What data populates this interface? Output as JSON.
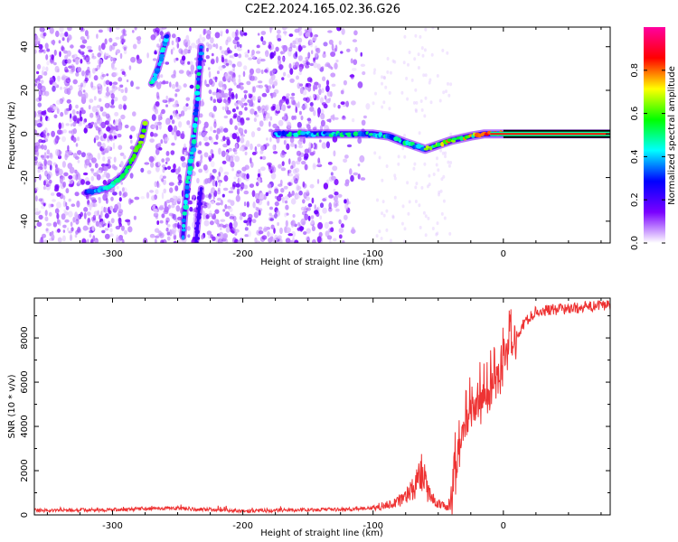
{
  "title": "C2E2.2024.165.02.36.G26",
  "chart_data": [
    {
      "type": "heatmap",
      "xlabel": "Height of straight line (km)",
      "ylabel": "Frequency (Hz)",
      "xlim": [
        -360,
        82
      ],
      "ylim": [
        -50,
        49
      ],
      "xticks": [
        -300,
        -200,
        -100,
        0
      ],
      "yticks": [
        -40,
        -20,
        0,
        20,
        40
      ],
      "colorbar": {
        "label": "Normalized spectral amplitude",
        "range": [
          0.0,
          1.0
        ],
        "ticks": [
          "0.0",
          "0.2",
          "0.4",
          "0.6",
          "0.8"
        ],
        "colormap": [
          "#ffffff",
          "#7a00ff",
          "#0000ff",
          "#00ffff",
          "#00ff00",
          "#ffff00",
          "#ff0000",
          "#ff00a0"
        ]
      },
      "features": {
        "main_track": [
          {
            "height": -175,
            "freq": 0
          },
          {
            "height": -100,
            "freq": 0
          },
          {
            "height": -88,
            "freq": -1
          },
          {
            "height": -75,
            "freq": -4
          },
          {
            "height": -60,
            "freq": -7
          },
          {
            "height": -50,
            "freq": -5
          },
          {
            "height": -40,
            "freq": -3
          },
          {
            "height": -25,
            "freq": -1
          },
          {
            "height": -15,
            "freq": 0
          },
          {
            "height": 0,
            "freq": 0
          },
          {
            "height": 82,
            "freq": 0
          }
        ],
        "curved_track": [
          {
            "height": -320,
            "freq": -27
          },
          {
            "height": -305,
            "freq": -25
          },
          {
            "height": -292,
            "freq": -19
          },
          {
            "height": -285,
            "freq": -12
          },
          {
            "height": -278,
            "freq": -3
          },
          {
            "height": -275,
            "freq": 5
          }
        ],
        "upper_streak": [
          {
            "height": -270,
            "freq": 23
          },
          {
            "height": -265,
            "freq": 30
          },
          {
            "height": -258,
            "freq": 45
          }
        ],
        "steep_streak": [
          {
            "height": -246,
            "freq": -47
          },
          {
            "height": -243,
            "freq": -25
          },
          {
            "height": -238,
            "freq": -5
          },
          {
            "height": -235,
            "freq": 15
          },
          {
            "height": -232,
            "freq": 40
          }
        ],
        "steep_streak_2": [
          {
            "height": -236,
            "freq": -50
          },
          {
            "height": -232,
            "freq": -25
          }
        ],
        "noise_extent_height": [
          -360,
          -105
        ]
      }
    },
    {
      "type": "line",
      "xlabel": "Height of straight line (km)",
      "ylabel": "SNR (10 * v/v)",
      "xlim": [
        -360,
        82
      ],
      "ylim": [
        0,
        9800
      ],
      "xticks": [
        -300,
        -200,
        -100,
        0
      ],
      "yticks": [
        0,
        2000,
        4000,
        6000,
        8000
      ],
      "line_color": "#ee3333",
      "envelope": [
        {
          "height": -360,
          "snr": 200
        },
        {
          "height": -300,
          "snr": 230
        },
        {
          "height": -260,
          "snr": 300
        },
        {
          "height": -230,
          "snr": 250
        },
        {
          "height": -200,
          "snr": 180
        },
        {
          "height": -150,
          "snr": 230
        },
        {
          "height": -120,
          "snr": 250
        },
        {
          "height": -100,
          "snr": 320
        },
        {
          "height": -85,
          "snr": 500
        },
        {
          "height": -75,
          "snr": 800
        },
        {
          "height": -68,
          "snr": 1300
        },
        {
          "height": -62,
          "snr": 2000
        },
        {
          "height": -58,
          "snr": 1000
        },
        {
          "height": -50,
          "snr": 500
        },
        {
          "height": -42,
          "snr": 300
        },
        {
          "height": -38,
          "snr": 1500
        },
        {
          "height": -32,
          "snr": 3500
        },
        {
          "height": -25,
          "snr": 4500
        },
        {
          "height": -18,
          "snr": 5000
        },
        {
          "height": -10,
          "snr": 5500
        },
        {
          "height": -5,
          "snr": 6300
        },
        {
          "height": 5,
          "snr": 7500
        },
        {
          "height": 15,
          "snr": 8600
        },
        {
          "height": 25,
          "snr": 9200
        },
        {
          "height": 45,
          "snr": 9300
        },
        {
          "height": 82,
          "snr": 9500
        }
      ]
    }
  ]
}
